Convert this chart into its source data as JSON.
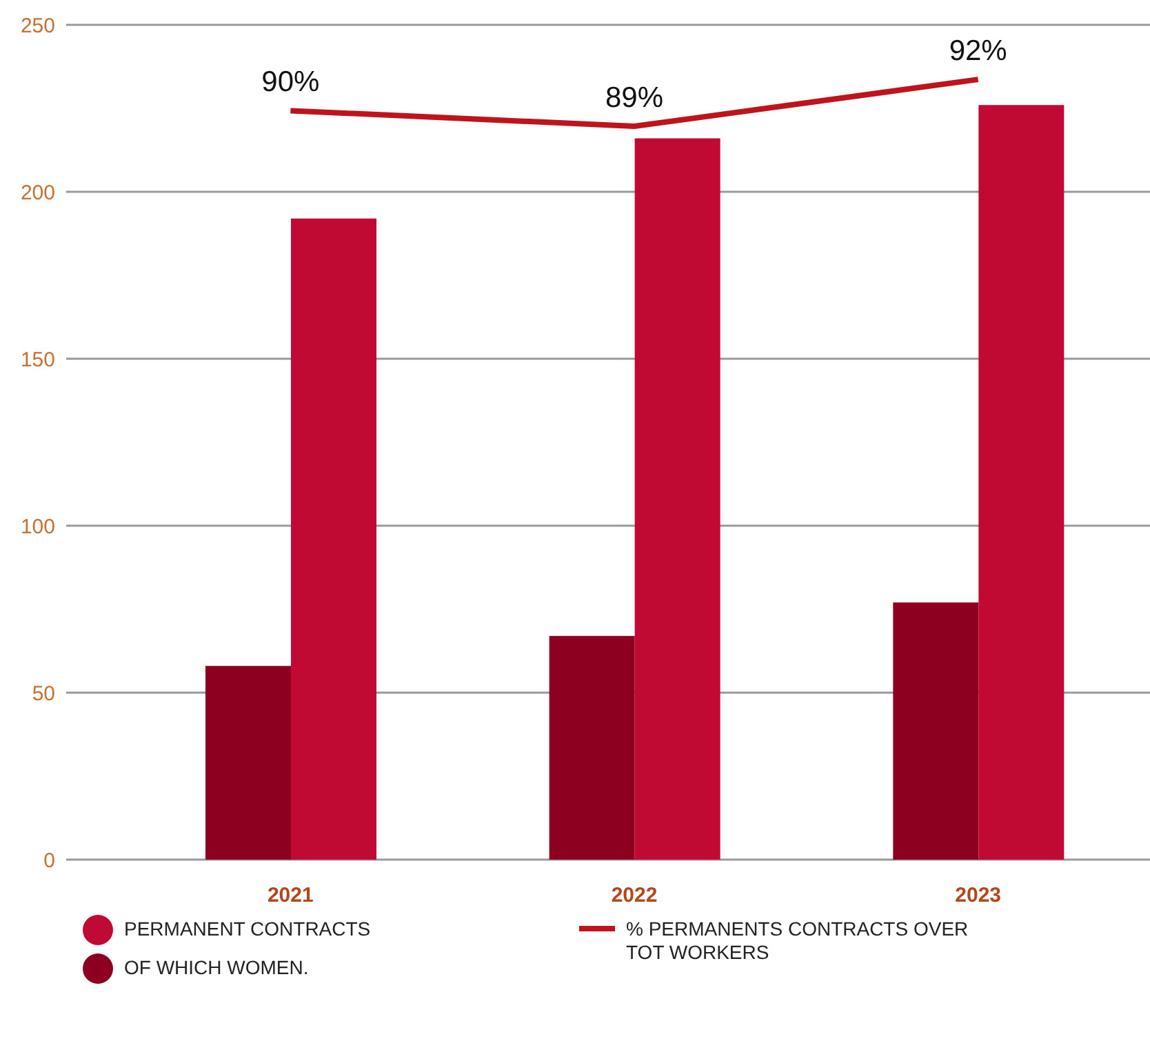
{
  "chart_data": {
    "type": "bar",
    "categories": [
      "2021",
      "2022",
      "2023"
    ],
    "series": [
      {
        "name": "OF WHICH WOMEN.",
        "color": "#8e0020",
        "values": [
          58,
          67,
          77
        ]
      },
      {
        "name": "PERMANENT CONTRACTS",
        "color": "#c10a33",
        "values": [
          192,
          216,
          226
        ]
      },
      {
        "name": "% PERMANENTS CONTRACTS OVER TOT WORKERS",
        "type": "line",
        "axis": "y2",
        "color": "#c0141c",
        "values": [
          90,
          89,
          92
        ],
        "value_labels": [
          "90%",
          "89%",
          "92%"
        ]
      }
    ],
    "ylim": [
      0,
      250
    ],
    "yticks": [
      0,
      50,
      100,
      150,
      200,
      250
    ],
    "y2lim": [
      42,
      95.5
    ],
    "grid": "y",
    "legend": "bottom",
    "marker": "none"
  }
}
